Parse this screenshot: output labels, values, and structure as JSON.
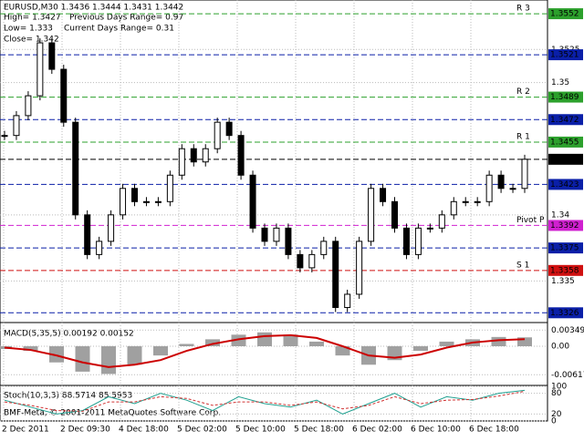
{
  "chart_data": [
    {
      "type": "candlestick",
      "title": "EURUSD,M30  1.3436 1.3444 1.3431 1.3442",
      "info": [
        "High= 1.3427",
        "Previous Days Range= 0.97",
        "Low= 1.333",
        "Current Days Range= 0.31",
        "Close= 1.342"
      ],
      "x_labels": [
        "2 Dec 2011",
        "2 Dec 09:30",
        "4 Dec 18:00",
        "5 Dec 02:00",
        "5 Dec 10:00",
        "5 Dec 18:00",
        "6 Dec 02:00",
        "6 Dec 10:00",
        "6 Dec 18:00"
      ],
      "series": [
        {
          "name": "EURUSD",
          "values": [
            1.346,
            1.3475,
            1.349,
            1.353,
            1.351,
            1.347,
            1.34,
            1.337,
            1.338,
            1.34,
            1.342,
            1.341,
            1.341,
            1.341,
            1.343,
            1.345,
            1.344,
            1.345,
            1.347,
            1.346,
            1.343,
            1.339,
            1.338,
            1.339,
            1.337,
            1.336,
            1.337,
            1.338,
            1.333,
            1.334,
            1.338,
            1.342,
            1.341,
            1.339,
            1.337,
            1.339,
            1.339,
            1.34,
            1.341,
            1.341,
            1.341,
            1.343,
            1.342,
            1.342,
            1.3442
          ]
        }
      ],
      "ylim": [
        1.332,
        1.3561
      ],
      "yticks": [
        1.3525,
        1.35,
        1.34,
        1.335
      ],
      "levels": [
        {
          "value": 1.3552,
          "color": "#2ca02c",
          "label": "R 3"
        },
        {
          "value": 1.3521,
          "color": "#0a1fa8"
        },
        {
          "value": 1.3489,
          "color": "#2ca02c",
          "label": "R 2"
        },
        {
          "value": 1.3472,
          "color": "#0a1fa8"
        },
        {
          "value": 1.3455,
          "color": "#2ca02c",
          "label": "R 1"
        },
        {
          "value": 1.3442,
          "color": "#000000"
        },
        {
          "value": 1.3423,
          "color": "#0a1fa8"
        },
        {
          "value": 1.3392,
          "color": "#d020d0",
          "label": "Pivot P"
        },
        {
          "value": 1.3375,
          "color": "#0a1fa8"
        },
        {
          "value": 1.3358,
          "color": "#d01010",
          "label": "S 1"
        },
        {
          "value": 1.3326,
          "color": "#0a1fa8"
        }
      ]
    },
    {
      "type": "macd",
      "title": "MACD(5,35,5) 0.00192 0.00152",
      "series": [
        {
          "name": "MACD",
          "color": "#a0a0a0",
          "values": [
            -0.0006,
            -0.001,
            -0.0035,
            -0.0055,
            -0.006,
            -0.004,
            -0.002,
            0.0005,
            0.0015,
            0.0025,
            0.003,
            0.0025,
            0.001,
            -0.002,
            -0.004,
            -0.003,
            -0.001,
            0.001,
            0.0015,
            0.002,
            0.00192
          ]
        },
        {
          "name": "Signal",
          "color": "#cc0000",
          "values": [
            -0.0003,
            -0.0008,
            -0.002,
            -0.0035,
            -0.0045,
            -0.004,
            -0.003,
            -0.001,
            0.0005,
            0.0015,
            0.0022,
            0.0024,
            0.0018,
            0.0,
            -0.002,
            -0.0025,
            -0.0018,
            -0.0003,
            0.0008,
            0.0013,
            0.00152
          ]
        }
      ],
      "ylim": [
        -0.00828,
        0.00473
      ],
      "yticks": [
        0.00349,
        {
          "value": 0,
          "label": "0.00"
        },
        -0.00617
      ]
    },
    {
      "type": "stochastic",
      "title": "Stoch(10,3,3) 88.5714 85.5953",
      "annotation": "BMF-Meta, © 2001-2011 MetaQuotes Software Corp.",
      "series": [
        {
          "name": "Main",
          "color": "#20a090",
          "values": [
            60,
            40,
            20,
            30,
            70,
            50,
            80,
            60,
            30,
            70,
            50,
            40,
            60,
            20,
            50,
            80,
            40,
            70,
            60,
            80,
            88.5714
          ]
        },
        {
          "name": "Signal",
          "color": "#d03030",
          "values": [
            55,
            45,
            30,
            28,
            55,
            55,
            70,
            65,
            45,
            55,
            55,
            45,
            55,
            35,
            45,
            70,
            50,
            60,
            62,
            72,
            85.5953
          ]
        }
      ],
      "ylim": [
        0,
        100
      ],
      "yticks": [
        100,
        80,
        20,
        0
      ]
    }
  ]
}
